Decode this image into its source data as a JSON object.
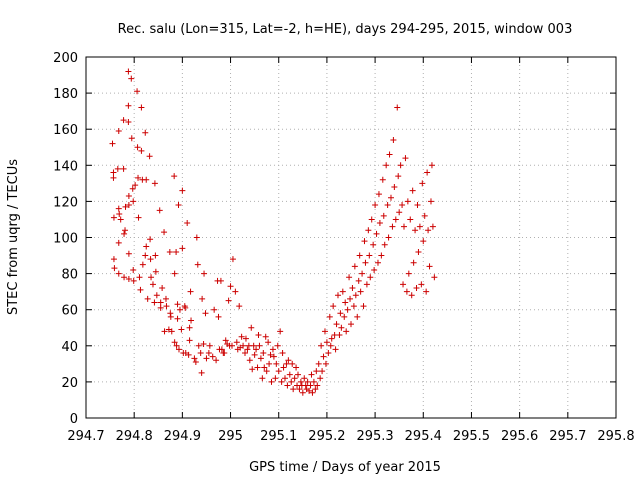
{
  "chart_data": {
    "type": "scatter",
    "title": "Rec. salu (Lon=315, Lat=-2, h=HE), days 294-295, 2015, window 003",
    "xlabel": "GPS time / Days of year 2015",
    "ylabel": "STEC from uqrg / TECUs",
    "xlim": [
      294.7,
      295.8
    ],
    "ylim": [
      0,
      200
    ],
    "xticks": [
      "294.7",
      "294.8",
      "294.9",
      "295",
      "295.1",
      "295.2",
      "295.3",
      "295.4",
      "295.5",
      "295.6",
      "295.7",
      "295.8"
    ],
    "yticks": [
      "0",
      "20",
      "40",
      "60",
      "80",
      "100",
      "120",
      "140",
      "160",
      "180",
      "200"
    ],
    "marker": "+",
    "color": "#cc0000",
    "grid": true,
    "series": [
      {
        "points": [
          [
            294.755,
            152
          ],
          [
            294.757,
            136
          ],
          [
            294.757,
            133
          ],
          [
            294.758,
            111
          ],
          [
            294.758,
            88
          ],
          [
            294.759,
            83
          ],
          [
            294.766,
            138
          ],
          [
            294.768,
            159
          ],
          [
            294.768,
            116
          ],
          [
            294.768,
            97
          ],
          [
            294.768,
            80
          ],
          [
            294.769,
            113
          ],
          [
            294.772,
            110
          ],
          [
            294.778,
            165
          ],
          [
            294.778,
            138
          ],
          [
            294.779,
            102
          ],
          [
            294.779,
            78
          ],
          [
            294.781,
            104
          ],
          [
            294.782,
            117
          ],
          [
            294.788,
            192
          ],
          [
            294.788,
            173
          ],
          [
            294.788,
            164
          ],
          [
            294.789,
            123
          ],
          [
            294.789,
            118
          ],
          [
            294.789,
            91
          ],
          [
            294.789,
            77
          ],
          [
            294.794,
            188
          ],
          [
            294.795,
            155
          ],
          [
            294.797,
            127
          ],
          [
            294.798,
            82
          ],
          [
            294.799,
            76
          ],
          [
            294.798,
            120
          ],
          [
            294.802,
            129
          ],
          [
            294.806,
            181
          ],
          [
            294.807,
            150
          ],
          [
            294.808,
            133
          ],
          [
            294.809,
            111
          ],
          [
            294.811,
            78
          ],
          [
            294.813,
            71
          ],
          [
            294.815,
            172
          ],
          [
            294.815,
            148
          ],
          [
            294.817,
            132
          ],
          [
            294.818,
            85
          ],
          [
            294.823,
            158
          ],
          [
            294.823,
            90
          ],
          [
            294.825,
            132
          ],
          [
            294.825,
            95
          ],
          [
            294.828,
            66
          ],
          [
            294.832,
            145
          ],
          [
            294.833,
            99
          ],
          [
            294.834,
            88
          ],
          [
            294.835,
            78
          ],
          [
            294.839,
            74
          ],
          [
            294.842,
            64
          ],
          [
            294.843,
            130
          ],
          [
            294.844,
            90
          ],
          [
            294.845,
            81
          ],
          [
            294.847,
            68
          ],
          [
            294.853,
            115
          ],
          [
            294.855,
            64
          ],
          [
            294.855,
            61
          ],
          [
            294.858,
            72
          ],
          [
            294.862,
            103
          ],
          [
            294.863,
            48
          ],
          [
            294.866,
            66
          ],
          [
            294.867,
            62
          ],
          [
            294.872,
            49
          ],
          [
            294.874,
            92
          ],
          [
            294.875,
            58
          ],
          [
            294.876,
            56
          ],
          [
            294.878,
            48
          ],
          [
            294.883,
            134
          ],
          [
            294.884,
            80
          ],
          [
            294.884,
            42
          ],
          [
            294.887,
            92
          ],
          [
            294.888,
            40
          ],
          [
            294.89,
            63
          ],
          [
            294.89,
            55
          ],
          [
            294.892,
            118
          ],
          [
            294.893,
            38
          ],
          [
            294.895,
            60
          ],
          [
            294.898,
            49
          ],
          [
            294.9,
            126
          ],
          [
            294.9,
            94
          ],
          [
            294.902,
            36
          ],
          [
            294.905,
            62
          ],
          [
            294.906,
            61
          ],
          [
            294.907,
            36
          ],
          [
            294.91,
            108
          ],
          [
            294.913,
            35
          ],
          [
            294.915,
            43
          ],
          [
            294.915,
            50
          ],
          [
            294.917,
            70
          ],
          [
            294.918,
            54
          ],
          [
            294.925,
            33
          ],
          [
            294.928,
            31
          ],
          [
            294.93,
            100
          ],
          [
            294.932,
            85
          ],
          [
            294.934,
            40
          ],
          [
            294.938,
            36
          ],
          [
            294.94,
            25
          ],
          [
            294.941,
            66
          ],
          [
            294.944,
            41
          ],
          [
            294.945,
            80
          ],
          [
            294.948,
            58
          ],
          [
            294.95,
            33
          ],
          [
            294.955,
            36
          ],
          [
            294.957,
            40
          ],
          [
            294.963,
            34
          ],
          [
            294.966,
            60
          ],
          [
            294.97,
            32
          ],
          [
            294.973,
            76
          ],
          [
            294.975,
            56
          ],
          [
            294.977,
            38
          ],
          [
            294.98,
            76
          ],
          [
            294.982,
            38
          ],
          [
            294.985,
            36
          ],
          [
            294.987,
            36
          ],
          [
            294.99,
            43
          ],
          [
            294.993,
            41
          ],
          [
            294.996,
            65
          ],
          [
            294.998,
            40
          ],
          [
            295.0,
            73
          ],
          [
            295.003,
            40
          ],
          [
            295.005,
            88
          ],
          [
            295.01,
            70
          ],
          [
            295.013,
            42
          ],
          [
            295.015,
            38
          ],
          [
            295.018,
            62
          ],
          [
            295.02,
            39
          ],
          [
            295.023,
            45
          ],
          [
            295.026,
            40
          ],
          [
            295.03,
            36
          ],
          [
            295.032,
            44
          ],
          [
            295.035,
            38
          ],
          [
            295.038,
            40
          ],
          [
            295.04,
            32
          ],
          [
            295.043,
            50
          ],
          [
            295.045,
            27
          ],
          [
            295.048,
            40
          ],
          [
            295.05,
            35
          ],
          [
            295.053,
            38
          ],
          [
            295.056,
            28
          ],
          [
            295.058,
            46
          ],
          [
            295.06,
            40
          ],
          [
            295.063,
            33
          ],
          [
            295.066,
            22
          ],
          [
            295.068,
            36
          ],
          [
            295.07,
            28
          ],
          [
            295.073,
            45
          ],
          [
            295.075,
            26
          ],
          [
            295.078,
            42
          ],
          [
            295.08,
            30
          ],
          [
            295.083,
            35
          ],
          [
            295.085,
            20
          ],
          [
            295.088,
            38
          ],
          [
            295.09,
            34
          ],
          [
            295.093,
            22
          ],
          [
            295.095,
            30
          ],
          [
            295.098,
            40
          ],
          [
            295.1,
            26
          ],
          [
            295.103,
            48
          ],
          [
            295.106,
            20
          ],
          [
            295.108,
            36
          ],
          [
            295.11,
            28
          ],
          [
            295.113,
            22
          ],
          [
            295.116,
            30
          ],
          [
            295.118,
            18
          ],
          [
            295.12,
            32
          ],
          [
            295.123,
            24
          ],
          [
            295.126,
            20
          ],
          [
            295.128,
            30
          ],
          [
            295.13,
            16
          ],
          [
            295.133,
            22
          ],
          [
            295.136,
            28
          ],
          [
            295.138,
            18
          ],
          [
            295.14,
            24
          ],
          [
            295.143,
            16
          ],
          [
            295.146,
            20
          ],
          [
            295.148,
            18
          ],
          [
            295.15,
            14
          ],
          [
            295.153,
            22
          ],
          [
            295.156,
            18
          ],
          [
            295.158,
            16
          ],
          [
            295.16,
            20
          ],
          [
            295.163,
            15
          ],
          [
            295.166,
            18
          ],
          [
            295.168,
            24
          ],
          [
            295.17,
            14
          ],
          [
            295.173,
            20
          ],
          [
            295.176,
            16
          ],
          [
            295.178,
            26
          ],
          [
            295.18,
            18
          ],
          [
            295.183,
            30
          ],
          [
            295.186,
            22
          ],
          [
            295.188,
            40
          ],
          [
            295.19,
            26
          ],
          [
            295.193,
            34
          ],
          [
            295.196,
            48
          ],
          [
            295.198,
            30
          ],
          [
            295.2,
            42
          ],
          [
            295.203,
            36
          ],
          [
            295.206,
            56
          ],
          [
            295.208,
            40
          ],
          [
            295.21,
            44
          ],
          [
            295.213,
            62
          ],
          [
            295.216,
            46
          ],
          [
            295.218,
            38
          ],
          [
            295.22,
            52
          ],
          [
            295.223,
            68
          ],
          [
            295.226,
            46
          ],
          [
            295.228,
            58
          ],
          [
            295.23,
            50
          ],
          [
            295.233,
            70
          ],
          [
            295.236,
            56
          ],
          [
            295.238,
            64
          ],
          [
            295.24,
            48
          ],
          [
            295.243,
            60
          ],
          [
            295.246,
            78
          ],
          [
            295.248,
            66
          ],
          [
            295.25,
            52
          ],
          [
            295.253,
            72
          ],
          [
            295.256,
            62
          ],
          [
            295.258,
            84
          ],
          [
            295.26,
            68
          ],
          [
            295.263,
            56
          ],
          [
            295.266,
            76
          ],
          [
            295.268,
            90
          ],
          [
            295.27,
            70
          ],
          [
            295.273,
            80
          ],
          [
            295.276,
            62
          ],
          [
            295.278,
            98
          ],
          [
            295.28,
            86
          ],
          [
            295.283,
            74
          ],
          [
            295.286,
            104
          ],
          [
            295.288,
            90
          ],
          [
            295.29,
            78
          ],
          [
            295.293,
            110
          ],
          [
            295.296,
            96
          ],
          [
            295.298,
            82
          ],
          [
            295.3,
            118
          ],
          [
            295.303,
            102
          ],
          [
            295.306,
            86
          ],
          [
            295.308,
            124
          ],
          [
            295.31,
            108
          ],
          [
            295.313,
            90
          ],
          [
            295.316,
            132
          ],
          [
            295.318,
            112
          ],
          [
            295.32,
            96
          ],
          [
            295.323,
            140
          ],
          [
            295.326,
            118
          ],
          [
            295.328,
            100
          ],
          [
            295.33,
            146
          ],
          [
            295.333,
            122
          ],
          [
            295.336,
            106
          ],
          [
            295.338,
            154
          ],
          [
            295.34,
            128
          ],
          [
            295.343,
            110
          ],
          [
            295.346,
            172
          ],
          [
            295.348,
            134
          ],
          [
            295.35,
            114
          ],
          [
            295.353,
            140
          ],
          [
            295.356,
            118
          ],
          [
            295.358,
            74
          ],
          [
            295.36,
            106
          ],
          [
            295.363,
            144
          ],
          [
            295.366,
            70
          ],
          [
            295.368,
            120
          ],
          [
            295.37,
            80
          ],
          [
            295.373,
            110
          ],
          [
            295.376,
            68
          ],
          [
            295.378,
            126
          ],
          [
            295.38,
            86
          ],
          [
            295.383,
            104
          ],
          [
            295.386,
            72
          ],
          [
            295.388,
            118
          ],
          [
            295.39,
            92
          ],
          [
            295.393,
            106
          ],
          [
            295.396,
            74
          ],
          [
            295.398,
            130
          ],
          [
            295.4,
            98
          ],
          [
            295.403,
            112
          ],
          [
            295.406,
            70
          ],
          [
            295.408,
            136
          ],
          [
            295.41,
            104
          ],
          [
            295.413,
            84
          ],
          [
            295.416,
            120
          ],
          [
            295.418,
            140
          ],
          [
            295.42,
            106
          ],
          [
            295.423,
            78
          ]
        ]
      }
    ]
  }
}
